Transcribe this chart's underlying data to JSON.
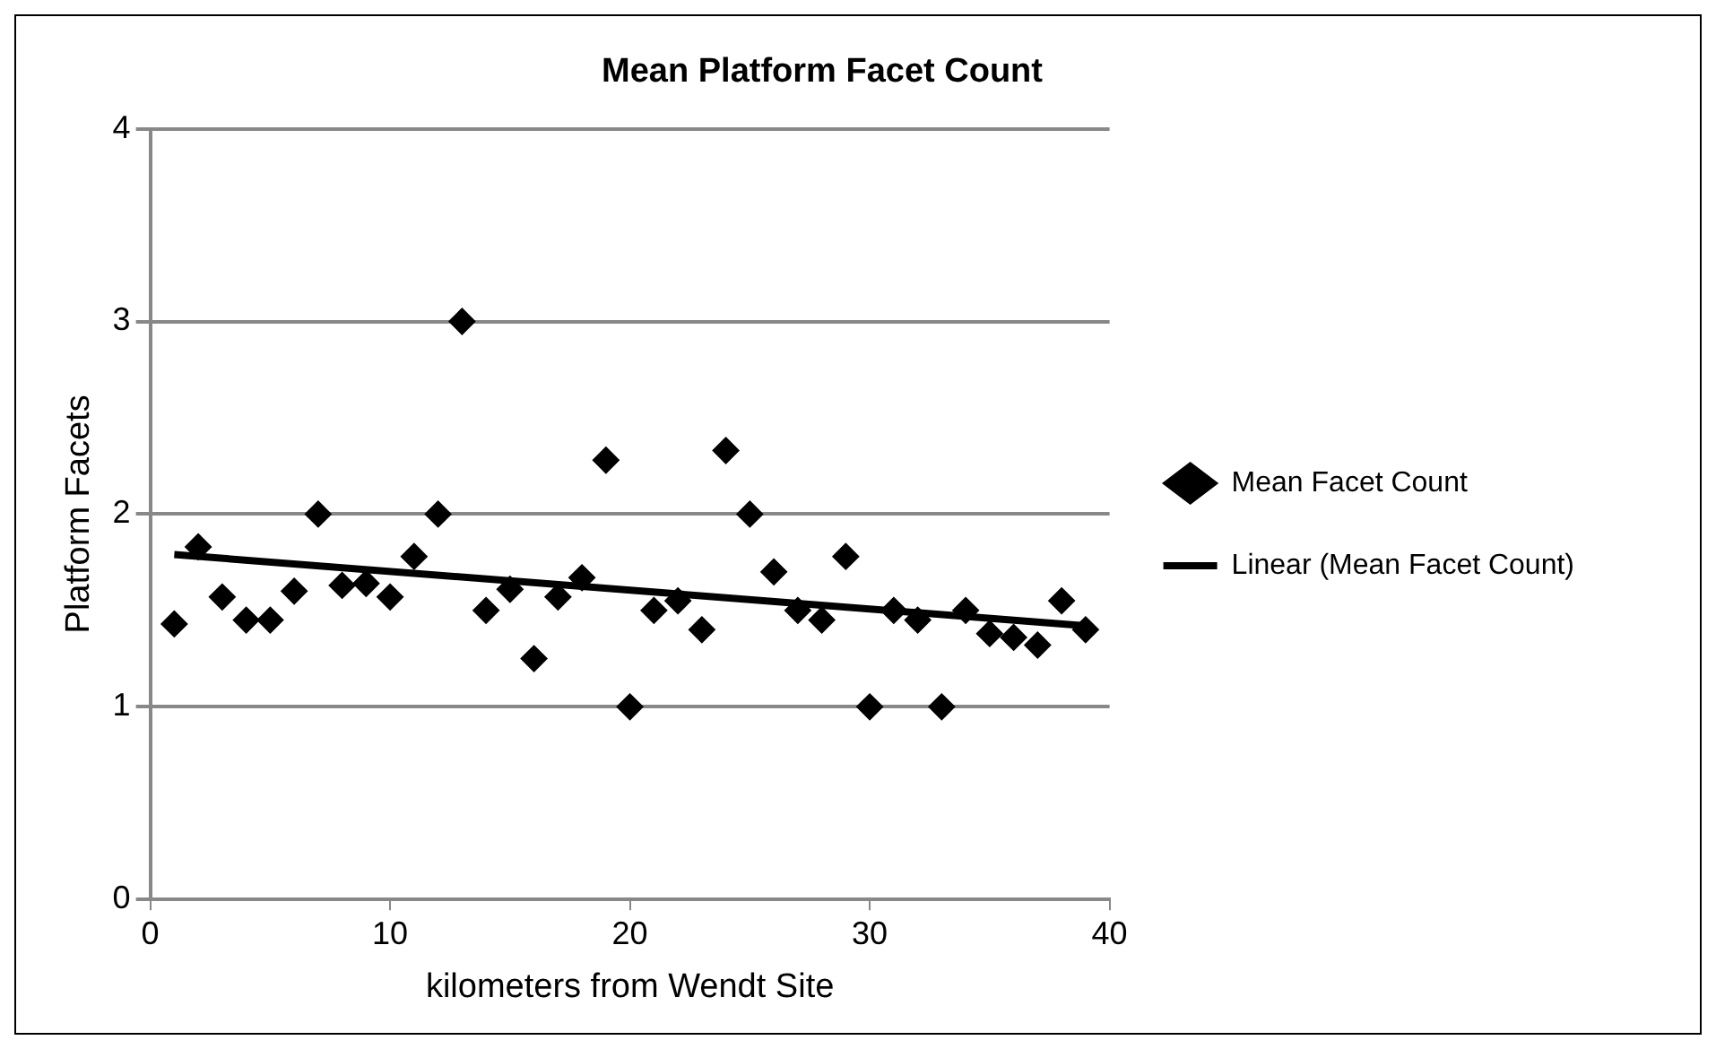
{
  "chart_data": {
    "type": "scatter",
    "title": "Mean Platform Facet Count",
    "xlabel": "kilometers from Wendt Site",
    "ylabel": "Platform Facets",
    "x": [
      1,
      2,
      3,
      4,
      5,
      6,
      7,
      8,
      9,
      10,
      11,
      12,
      13,
      14,
      15,
      16,
      17,
      18,
      19,
      20,
      21,
      22,
      23,
      24,
      25,
      26,
      27,
      28,
      29,
      30,
      31,
      32,
      33,
      34,
      35,
      36,
      37,
      38,
      39
    ],
    "series": [
      {
        "name": "Mean Facet Count",
        "color": "#000000",
        "marker": "diamond",
        "values": [
          1.43,
          1.83,
          1.57,
          1.45,
          1.45,
          1.6,
          2.0,
          1.63,
          1.64,
          1.57,
          1.78,
          2.0,
          3.0,
          1.5,
          1.61,
          1.25,
          1.57,
          1.67,
          2.28,
          1.0,
          1.5,
          1.55,
          1.4,
          2.33,
          2.0,
          1.7,
          1.5,
          1.45,
          1.78,
          1.0,
          1.5,
          1.45,
          1.0,
          1.5,
          1.38,
          1.36,
          1.32,
          1.55,
          1.4
        ]
      },
      {
        "name": "Linear (Mean Facet Count)",
        "type": "line",
        "color": "#000000",
        "marker": "none",
        "x": [
          1,
          39
        ],
        "values": [
          1.79,
          1.42
        ]
      }
    ],
    "xlim": [
      0,
      40
    ],
    "xticks": [
      0,
      10,
      20,
      30,
      40
    ],
    "ylim": [
      0,
      4
    ],
    "yticks": [
      0,
      1,
      2,
      3,
      4
    ],
    "grid": "y",
    "legend": "right"
  }
}
